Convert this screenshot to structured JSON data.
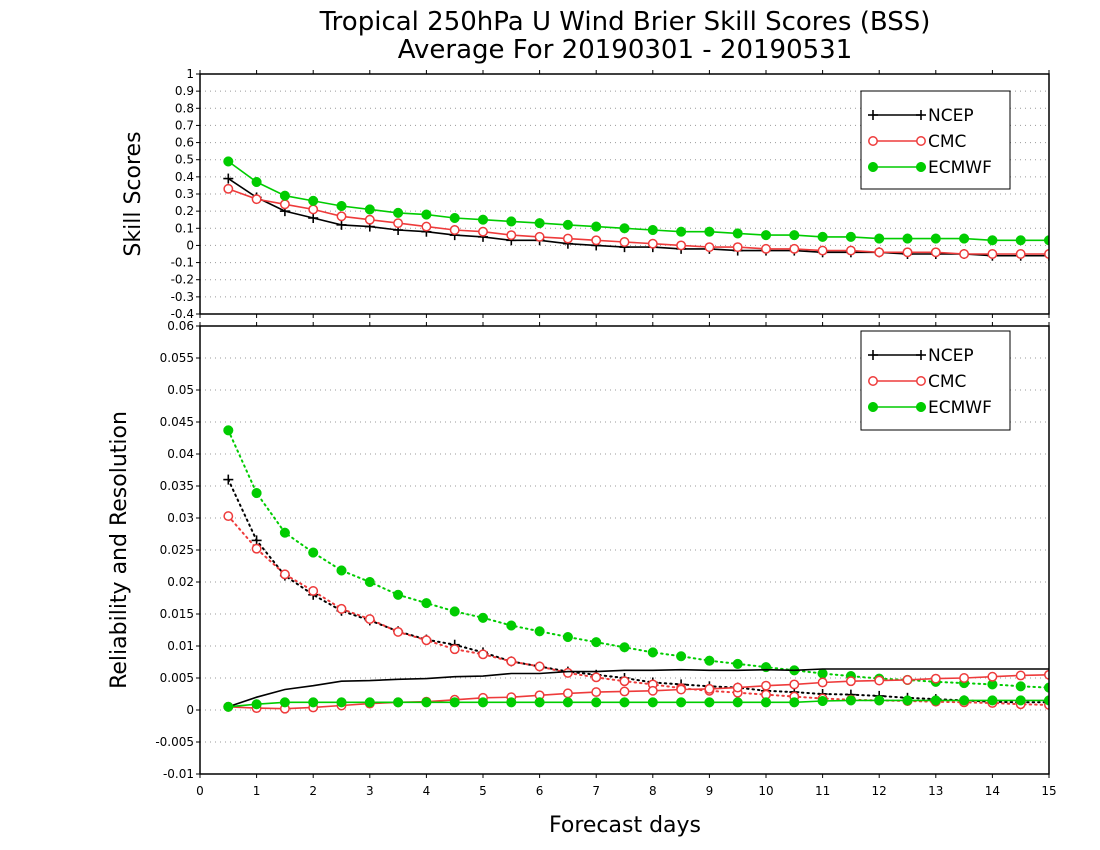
{
  "figure": {
    "title_line1": "Tropical 250hPa U Wind Brier Skill Scores (BSS)",
    "title_line2": "Average For 20190301 - 20190531",
    "xlabel": "Forecast days"
  },
  "colors": {
    "NCEP": "#000000",
    "CMC": "#ee3b3b",
    "ECMWF": "#00cc00"
  },
  "chart_data": [
    {
      "type": "line",
      "ylabel": "Skill Scores",
      "xlim": [
        0,
        15
      ],
      "ylim": [
        -0.4,
        1
      ],
      "x_ticks": [
        0,
        1,
        2,
        3,
        4,
        5,
        6,
        7,
        8,
        9,
        10,
        11,
        12,
        13,
        14,
        15
      ],
      "y_ticks": [
        "-0.4",
        "-0.3",
        "-0.2",
        "-0.1",
        "0",
        "0.1",
        "0.2",
        "0.3",
        "0.4",
        "0.5",
        "0.6",
        "0.7",
        "0.8",
        "0.9",
        "1"
      ],
      "grid": "horizontal dotted",
      "legend_position": "top-right",
      "x": [
        0.5,
        1,
        1.5,
        2,
        2.5,
        3,
        3.5,
        4,
        4.5,
        5,
        5.5,
        6,
        6.5,
        7,
        7.5,
        8,
        8.5,
        9,
        9.5,
        10,
        10.5,
        11,
        11.5,
        12,
        12.5,
        13,
        13.5,
        14,
        14.5,
        15
      ],
      "series": [
        {
          "name": "NCEP",
          "marker": "plus",
          "line": "solid",
          "values": [
            0.39,
            0.28,
            0.2,
            0.16,
            0.12,
            0.11,
            0.09,
            0.08,
            0.06,
            0.05,
            0.03,
            0.03,
            0.01,
            0.0,
            -0.01,
            -0.01,
            -0.02,
            -0.02,
            -0.03,
            -0.03,
            -0.03,
            -0.04,
            -0.04,
            -0.04,
            -0.05,
            -0.05,
            -0.05,
            -0.06,
            -0.06,
            -0.06
          ]
        },
        {
          "name": "CMC",
          "marker": "open-circle",
          "line": "solid",
          "values": [
            0.33,
            0.27,
            0.24,
            0.21,
            0.17,
            0.15,
            0.13,
            0.11,
            0.09,
            0.08,
            0.06,
            0.05,
            0.04,
            0.03,
            0.02,
            0.01,
            0.0,
            -0.01,
            -0.01,
            -0.02,
            -0.02,
            -0.03,
            -0.03,
            -0.04,
            -0.04,
            -0.04,
            -0.05,
            -0.05,
            -0.05,
            -0.05
          ]
        },
        {
          "name": "ECMWF",
          "marker": "filled-circle",
          "line": "solid",
          "values": [
            0.49,
            0.37,
            0.29,
            0.26,
            0.23,
            0.21,
            0.19,
            0.18,
            0.16,
            0.15,
            0.14,
            0.13,
            0.12,
            0.11,
            0.1,
            0.09,
            0.08,
            0.08,
            0.07,
            0.06,
            0.06,
            0.05,
            0.05,
            0.04,
            0.04,
            0.04,
            0.04,
            0.03,
            0.03,
            0.03
          ]
        }
      ]
    },
    {
      "type": "line",
      "ylabel": "Reliability and Resolution",
      "xlim": [
        0,
        15
      ],
      "ylim": [
        -0.01,
        0.06
      ],
      "x_ticks": [
        0,
        1,
        2,
        3,
        4,
        5,
        6,
        7,
        8,
        9,
        10,
        11,
        12,
        13,
        14,
        15
      ],
      "y_ticks": [
        "-0.01",
        "-0.005",
        "0",
        "0.005",
        "0.01",
        "0.015",
        "0.02",
        "0.025",
        "0.03",
        "0.035",
        "0.04",
        "0.045",
        "0.05",
        "0.055",
        "0.06"
      ],
      "grid": "horizontal dotted",
      "legend_position": "top-right",
      "x": [
        0.5,
        1,
        1.5,
        2,
        2.5,
        3,
        3.5,
        4,
        4.5,
        5,
        5.5,
        6,
        6.5,
        7,
        7.5,
        8,
        8.5,
        9,
        9.5,
        10,
        10.5,
        11,
        11.5,
        12,
        12.5,
        13,
        13.5,
        14,
        14.5,
        15
      ],
      "series": [
        {
          "name": "NCEP",
          "marker": "plus",
          "line": "dotted",
          "values": [
            0.036,
            0.0265,
            0.021,
            0.018,
            0.0155,
            0.014,
            0.0123,
            0.011,
            0.0102,
            0.009,
            0.0076,
            0.0068,
            0.006,
            0.0055,
            0.005,
            0.0043,
            0.004,
            0.0037,
            0.0035,
            0.003,
            0.0028,
            0.0025,
            0.0024,
            0.0022,
            0.0019,
            0.0017,
            0.0015,
            0.0013,
            0.0012,
            0.0012
          ]
        },
        {
          "name": "CMC",
          "marker": "open-circle",
          "line": "dotted",
          "values": [
            0.0303,
            0.0252,
            0.0212,
            0.0186,
            0.0158,
            0.0142,
            0.0122,
            0.0109,
            0.0095,
            0.0087,
            0.0076,
            0.0068,
            0.0058,
            0.0051,
            0.0045,
            0.004,
            0.0034,
            0.003,
            0.0027,
            0.0024,
            0.0021,
            0.0018,
            0.0016,
            0.0015,
            0.0014,
            0.0013,
            0.0012,
            0.0011,
            0.0009,
            0.0008
          ]
        },
        {
          "name": "ECMWF",
          "marker": "filled-circle",
          "line": "dotted",
          "values": [
            0.0437,
            0.0339,
            0.0277,
            0.0246,
            0.0218,
            0.02,
            0.018,
            0.0167,
            0.0154,
            0.0144,
            0.0132,
            0.0123,
            0.0114,
            0.0106,
            0.0098,
            0.009,
            0.0084,
            0.0077,
            0.0072,
            0.0067,
            0.0062,
            0.0057,
            0.0053,
            0.0049,
            0.0047,
            0.0044,
            0.0042,
            0.004,
            0.0037,
            0.0035
          ]
        },
        {
          "name": "NCEP",
          "marker": "none",
          "line": "solid",
          "values": [
            0.0005,
            0.002,
            0.0032,
            0.0038,
            0.0045,
            0.0046,
            0.0048,
            0.0049,
            0.0052,
            0.0053,
            0.0057,
            0.0057,
            0.006,
            0.006,
            0.0062,
            0.0062,
            0.0063,
            0.0062,
            0.0062,
            0.0063,
            0.0062,
            0.0064,
            0.0064,
            0.0064,
            0.0064,
            0.0064,
            0.0064,
            0.0064,
            0.0064,
            0.0064
          ]
        },
        {
          "name": "CMC",
          "marker": "open-circle",
          "line": "solid",
          "values": [
            0.0005,
            0.0003,
            0.0002,
            0.0004,
            0.0007,
            0.001,
            0.0012,
            0.0013,
            0.0016,
            0.0019,
            0.002,
            0.0023,
            0.0026,
            0.0028,
            0.0029,
            0.003,
            0.0032,
            0.0033,
            0.0035,
            0.0038,
            0.004,
            0.0043,
            0.0045,
            0.0046,
            0.0047,
            0.0049,
            0.005,
            0.0052,
            0.0054,
            0.0055
          ]
        },
        {
          "name": "ECMWF",
          "marker": "filled-circle",
          "line": "solid",
          "values": [
            0.0005,
            0.0009,
            0.0012,
            0.0012,
            0.0012,
            0.0012,
            0.0012,
            0.0012,
            0.0012,
            0.0012,
            0.0012,
            0.0012,
            0.0012,
            0.0012,
            0.0012,
            0.0012,
            0.0012,
            0.0012,
            0.0012,
            0.0012,
            0.0012,
            0.0014,
            0.0015,
            0.0015,
            0.0015,
            0.0015,
            0.0015,
            0.0015,
            0.0015,
            0.0015
          ]
        }
      ]
    }
  ]
}
